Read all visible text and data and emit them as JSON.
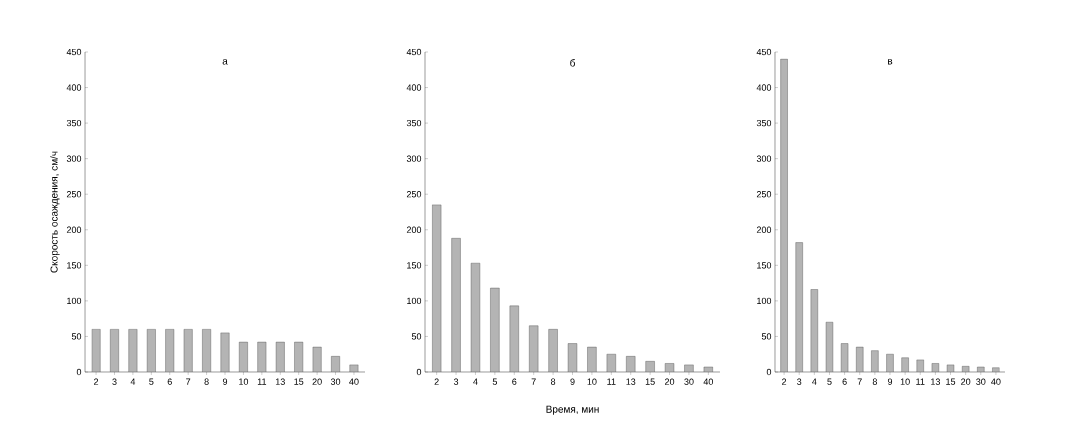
{
  "chart_data": [
    {
      "type": "bar",
      "title": "а",
      "ylabel": "Скорость осаждения, см/ч",
      "categories": [
        "2",
        "3",
        "4",
        "5",
        "6",
        "7",
        "8",
        "9",
        "10",
        "11",
        "13",
        "15",
        "20",
        "30",
        "40"
      ],
      "series": [
        {
          "color": "#b4b4b4",
          "values": [
            60,
            60,
            60,
            60,
            60,
            60,
            60,
            55,
            42,
            42,
            42,
            42,
            35,
            22,
            10
          ]
        }
      ],
      "ylim": [
        0,
        450
      ],
      "yticks": [
        0,
        50,
        100,
        150,
        200,
        250,
        300,
        350,
        400,
        450
      ]
    },
    {
      "type": "bar",
      "title": "б",
      "xlabel": "Время, мин",
      "categories": [
        "2",
        "3",
        "4",
        "5",
        "6",
        "7",
        "8",
        "9",
        "10",
        "11",
        "13",
        "15",
        "20",
        "30",
        "40"
      ],
      "series": [
        {
          "color": "#b4b4b4",
          "values": [
            235,
            188,
            153,
            118,
            93,
            65,
            60,
            40,
            35,
            25,
            22,
            15,
            12,
            10,
            7
          ]
        }
      ],
      "ylim": [
        0,
        450
      ],
      "yticks": [
        0,
        50,
        100,
        150,
        200,
        250,
        300,
        350,
        400,
        450
      ]
    },
    {
      "type": "bar",
      "title": "в",
      "categories": [
        "2",
        "3",
        "4",
        "5",
        "6",
        "7",
        "8",
        "9",
        "10",
        "11",
        "13",
        "15",
        "20",
        "30",
        "40"
      ],
      "series": [
        {
          "color": "#b4b4b4",
          "values": [
            440,
            182,
            116,
            70,
            40,
            35,
            30,
            25,
            20,
            17,
            12,
            10,
            8,
            7,
            6
          ]
        }
      ],
      "ylim": [
        0,
        450
      ],
      "yticks": [
        0,
        50,
        100,
        150,
        200,
        250,
        300,
        350,
        400,
        450
      ]
    }
  ]
}
